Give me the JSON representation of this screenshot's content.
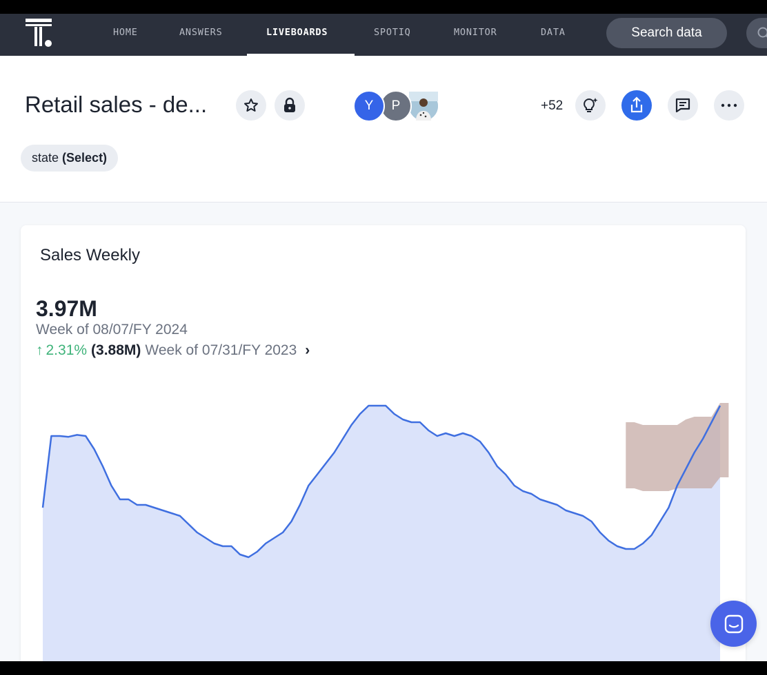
{
  "nav": {
    "items": [
      "HOME",
      "ANSWERS",
      "LIVEBOARDS",
      "SPOTIQ",
      "MONITOR",
      "DATA"
    ],
    "active": "LIVEBOARDS",
    "search_label": "Search data"
  },
  "header": {
    "title": "Retail sales - de...",
    "avatars": [
      "Y",
      "P"
    ],
    "plus_count": "+52",
    "filter": {
      "name": "state",
      "value": "(Select)"
    }
  },
  "card": {
    "title": "Sales Weekly",
    "kpi": {
      "value": "3.97M",
      "period": "Week of 08/07/FY 2024",
      "change_pct": "2.31%",
      "prev_value": "(3.88M)",
      "prev_period": "Week of 07/31/FY 2023"
    }
  },
  "colors": {
    "nav_bg": "#2b303c",
    "accent": "#2f6bea",
    "positive": "#3fb37a",
    "line": "#3f6fe0",
    "area": "#dbe3fa",
    "forecast_band": "#c5aba6"
  },
  "chart_data": {
    "type": "area",
    "series": [
      {
        "values": [
          3.6,
          3.86,
          3.86,
          3.857,
          3.864,
          3.86,
          3.812,
          3.75,
          3.68,
          3.63,
          3.63,
          3.61,
          3.61,
          3.6,
          3.59,
          3.58,
          3.57,
          3.54,
          3.51,
          3.49,
          3.47,
          3.46,
          3.46,
          3.43,
          3.42,
          3.44,
          3.47,
          3.49,
          3.51,
          3.55,
          3.61,
          3.68,
          3.72,
          3.76,
          3.8,
          3.85,
          3.9,
          3.94,
          3.97,
          3.97,
          3.97,
          3.94,
          3.92,
          3.91,
          3.91,
          3.88,
          3.86,
          3.87,
          3.86,
          3.87,
          3.86,
          3.84,
          3.8,
          3.75,
          3.72,
          3.68,
          3.66,
          3.65,
          3.63,
          3.62,
          3.61,
          3.59,
          3.58,
          3.57,
          3.55,
          3.51,
          3.48,
          3.46,
          3.45,
          3.45,
          3.47,
          3.5,
          3.55,
          3.6,
          3.68,
          3.74,
          3.8,
          3.85,
          3.91,
          3.97
        ]
      }
    ],
    "forecast_band": {
      "start_index": 68,
      "upper": [
        3.91,
        3.91,
        3.9,
        3.9,
        3.9,
        3.9,
        3.9,
        3.92,
        3.93,
        3.93,
        3.93,
        3.98,
        3.98
      ],
      "lower": [
        3.67,
        3.67,
        3.66,
        3.66,
        3.66,
        3.66,
        3.67,
        3.67,
        3.67,
        3.67,
        3.67,
        3.71,
        3.71
      ]
    },
    "ylim": [
      3.0,
      4.0
    ],
    "grid": false,
    "legend": "none"
  }
}
